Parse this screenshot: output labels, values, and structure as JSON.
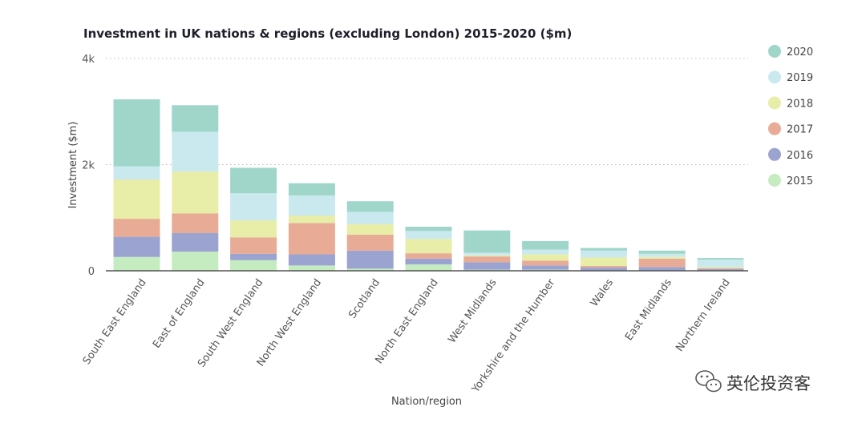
{
  "chart_data": {
    "type": "bar",
    "stacked": true,
    "title": "Investment in UK nations & regions (excluding London) 2015-2020 ($m)",
    "xlabel": "Nation/region",
    "ylabel": "Investment ($m)",
    "ylim": [
      0,
      4000
    ],
    "yticks": [
      {
        "value": 0,
        "label": "0"
      },
      {
        "value": 2000,
        "label": "2k"
      },
      {
        "value": 4000,
        "label": "4k"
      }
    ],
    "grid": true,
    "legend_position": "right",
    "categories": [
      "South East England",
      "East of England",
      "South West England",
      "North West England",
      "Scotland",
      "North East England",
      "West Midlands",
      "Yorkshire and the Humber",
      "Wales",
      "East Midlands",
      "Northern Ireland"
    ],
    "series": [
      {
        "name": "2015",
        "color": "#c5ecc0",
        "values": [
          260,
          360,
          200,
          100,
          40,
          120,
          20,
          20,
          10,
          10,
          10
        ]
      },
      {
        "name": "2016",
        "color": "#9ba4d0",
        "values": [
          380,
          350,
          120,
          210,
          340,
          110,
          140,
          80,
          50,
          60,
          20
        ]
      },
      {
        "name": "2017",
        "color": "#e8ab95",
        "values": [
          340,
          370,
          310,
          590,
          300,
          100,
          110,
          90,
          30,
          160,
          20
        ]
      },
      {
        "name": "2018",
        "color": "#e8eda8",
        "values": [
          740,
          790,
          320,
          140,
          200,
          270,
          20,
          120,
          160,
          30,
          20
        ]
      },
      {
        "name": "2019",
        "color": "#c9e9ef",
        "values": [
          250,
          750,
          510,
          380,
          230,
          150,
          50,
          90,
          130,
          60,
          140
        ]
      },
      {
        "name": "2020",
        "color": "#9fd6c9",
        "values": [
          1260,
          500,
          480,
          230,
          200,
          80,
          420,
          160,
          50,
          60,
          30
        ]
      }
    ],
    "legend": [
      {
        "name": "2020",
        "color": "#9fd6c9"
      },
      {
        "name": "2019",
        "color": "#c9e9ef"
      },
      {
        "name": "2018",
        "color": "#e8eda8"
      },
      {
        "name": "2017",
        "color": "#e8ab95"
      },
      {
        "name": "2016",
        "color": "#9ba4d0"
      },
      {
        "name": "2015",
        "color": "#c5ecc0"
      }
    ]
  },
  "watermark": {
    "text": "英伦投资客",
    "icon": "wechat-icon"
  }
}
